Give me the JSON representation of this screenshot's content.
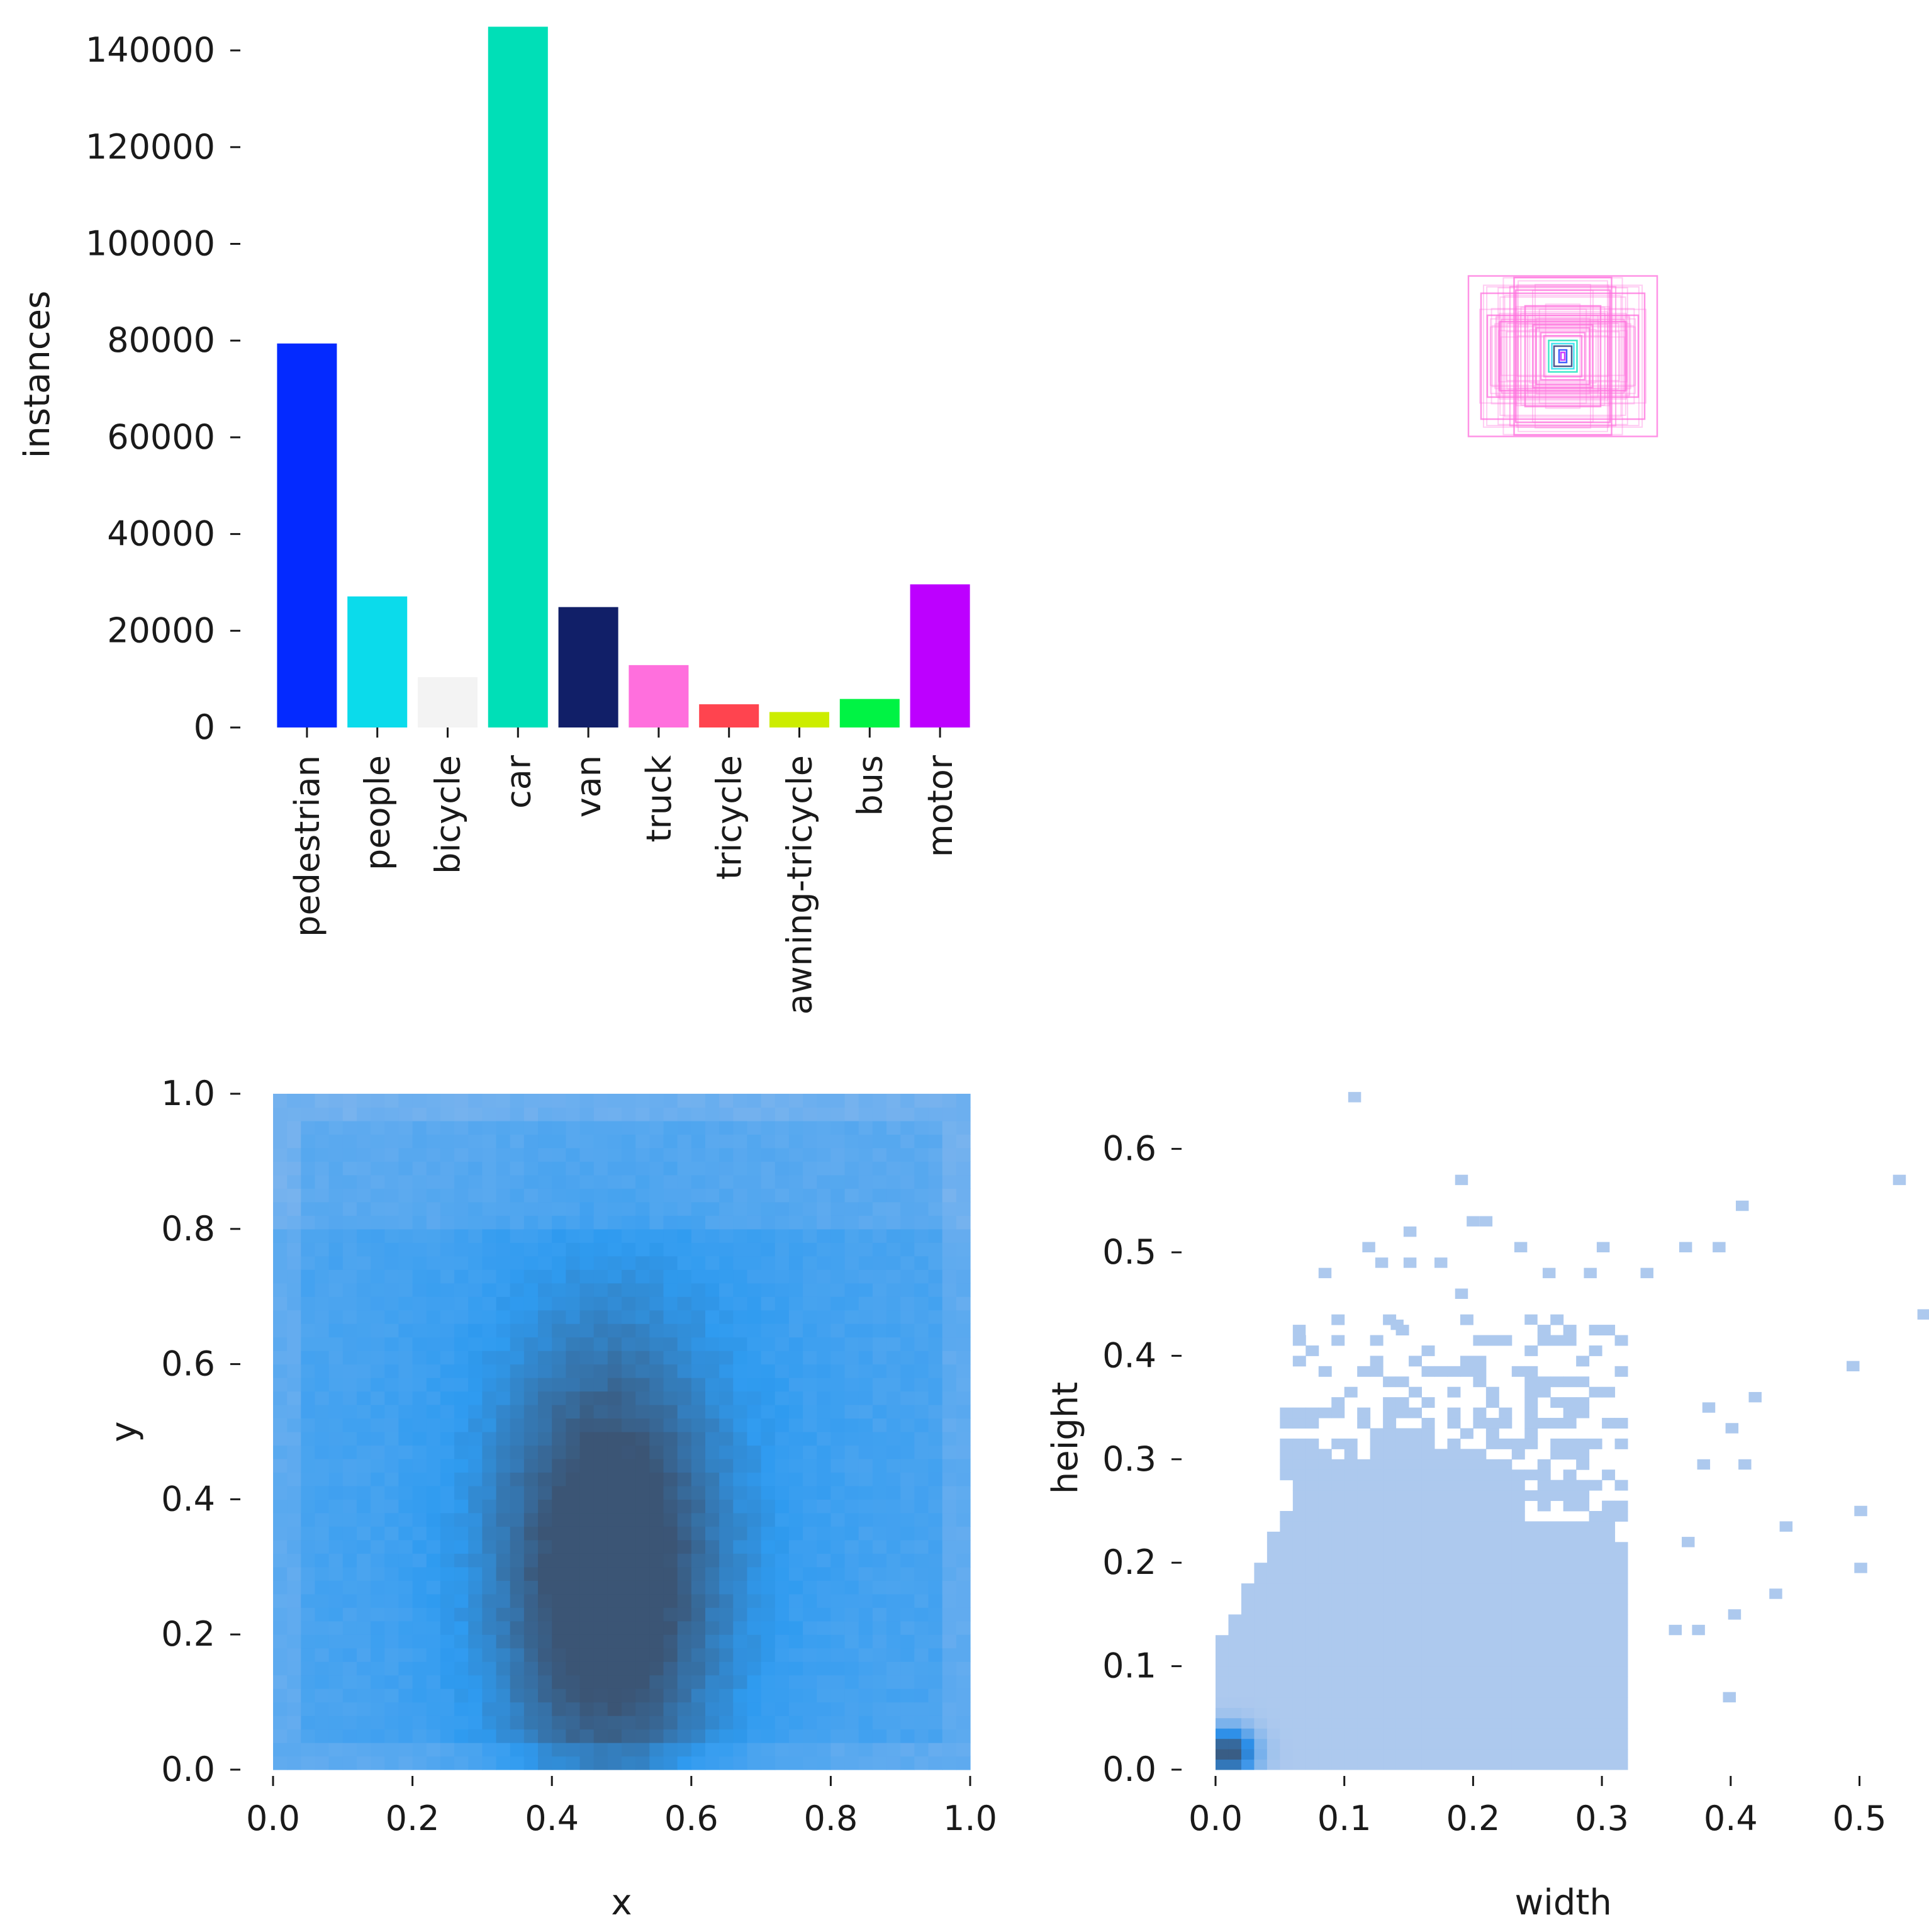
{
  "chart_data": [
    {
      "panel": "class-counts",
      "type": "bar",
      "title": "",
      "xlabel": "",
      "ylabel": "instances",
      "ylim": [
        0,
        146000
      ],
      "yticks": [
        0,
        20000,
        40000,
        60000,
        80000,
        100000,
        120000,
        140000
      ],
      "categories": [
        "pedestrian",
        "people",
        "bicycle",
        "car",
        "van",
        "truck",
        "tricycle",
        "awning-tricycle",
        "bus",
        "motor"
      ],
      "values": [
        79400,
        27100,
        10400,
        144900,
        24900,
        12900,
        4800,
        3200,
        5900,
        29600
      ],
      "colors": [
        "#042aff",
        "#0bdbeb",
        "#f3f3f3",
        "#00dfb7",
        "#111f68",
        "#ff6fdd",
        "#ff444f",
        "#cced00",
        "#00f344",
        "#bd00ff"
      ]
    },
    {
      "panel": "box-shapes",
      "type": "other",
      "description_boxes": "normalized box outlines centered at one point",
      "boxes": [
        {
          "w": 0.3,
          "h": 0.255,
          "color": "#ff6fdd"
        },
        {
          "w": 0.26,
          "h": 0.2,
          "color": "#ff6fdd"
        },
        {
          "w": 0.155,
          "h": 0.25,
          "color": "#ff6fdd"
        },
        {
          "w": 0.15,
          "h": 0.21,
          "color": "#ff6fdd"
        },
        {
          "w": 0.12,
          "h": 0.16,
          "color": "#ff6fdd"
        },
        {
          "w": 0.24,
          "h": 0.13,
          "color": "#ff6fdd"
        },
        {
          "w": 0.2,
          "h": 0.11,
          "color": "#ff6fdd"
        },
        {
          "w": 0.095,
          "h": 0.1,
          "color": "#ff6fdd"
        },
        {
          "w": 0.085,
          "h": 0.09,
          "color": "#ff6fdd"
        },
        {
          "w": 0.07,
          "h": 0.075,
          "color": "#ff6fdd"
        },
        {
          "w": 0.06,
          "h": 0.065,
          "color": "#ff6fdd"
        },
        {
          "w": 0.045,
          "h": 0.05,
          "color": "#00dfb7"
        },
        {
          "w": 0.035,
          "h": 0.04,
          "color": "#0bdbeb"
        },
        {
          "w": 0.028,
          "h": 0.032,
          "color": "#111f68"
        },
        {
          "w": 0.012,
          "h": 0.02,
          "color": "#042aff"
        },
        {
          "w": 0.006,
          "h": 0.012,
          "color": "#bd00ff"
        }
      ]
    },
    {
      "panel": "xy-density",
      "type": "heatmap",
      "xlabel": "x",
      "ylabel": "y",
      "xlim": [
        0,
        1
      ],
      "ylim": [
        0,
        1
      ],
      "xticks": [
        0.0,
        0.2,
        0.4,
        0.6,
        0.8,
        1.0
      ],
      "yticks": [
        0.0,
        0.2,
        0.4,
        0.6,
        0.8,
        1.0
      ],
      "bins": 50,
      "density_peak": {
        "x": 0.48,
        "y": 0.28
      },
      "colormap": [
        "#85b7ee",
        "#2f9bf0",
        "#3b5575"
      ]
    },
    {
      "panel": "width-height-density",
      "type": "heatmap",
      "xlabel": "width",
      "ylabel": "height",
      "xlim": [
        0,
        0.54
      ],
      "ylim": [
        0,
        0.65
      ],
      "xticks": [
        0.0,
        0.1,
        0.2,
        0.3,
        0.4,
        0.5
      ],
      "yticks": [
        0.0,
        0.1,
        0.2,
        0.3,
        0.4,
        0.5,
        0.6
      ],
      "density_peak": {
        "x": 0.005,
        "y": 0.015
      },
      "colormap": [
        "#adc9ee",
        "#2d8fe8",
        "#3b5575"
      ]
    }
  ]
}
